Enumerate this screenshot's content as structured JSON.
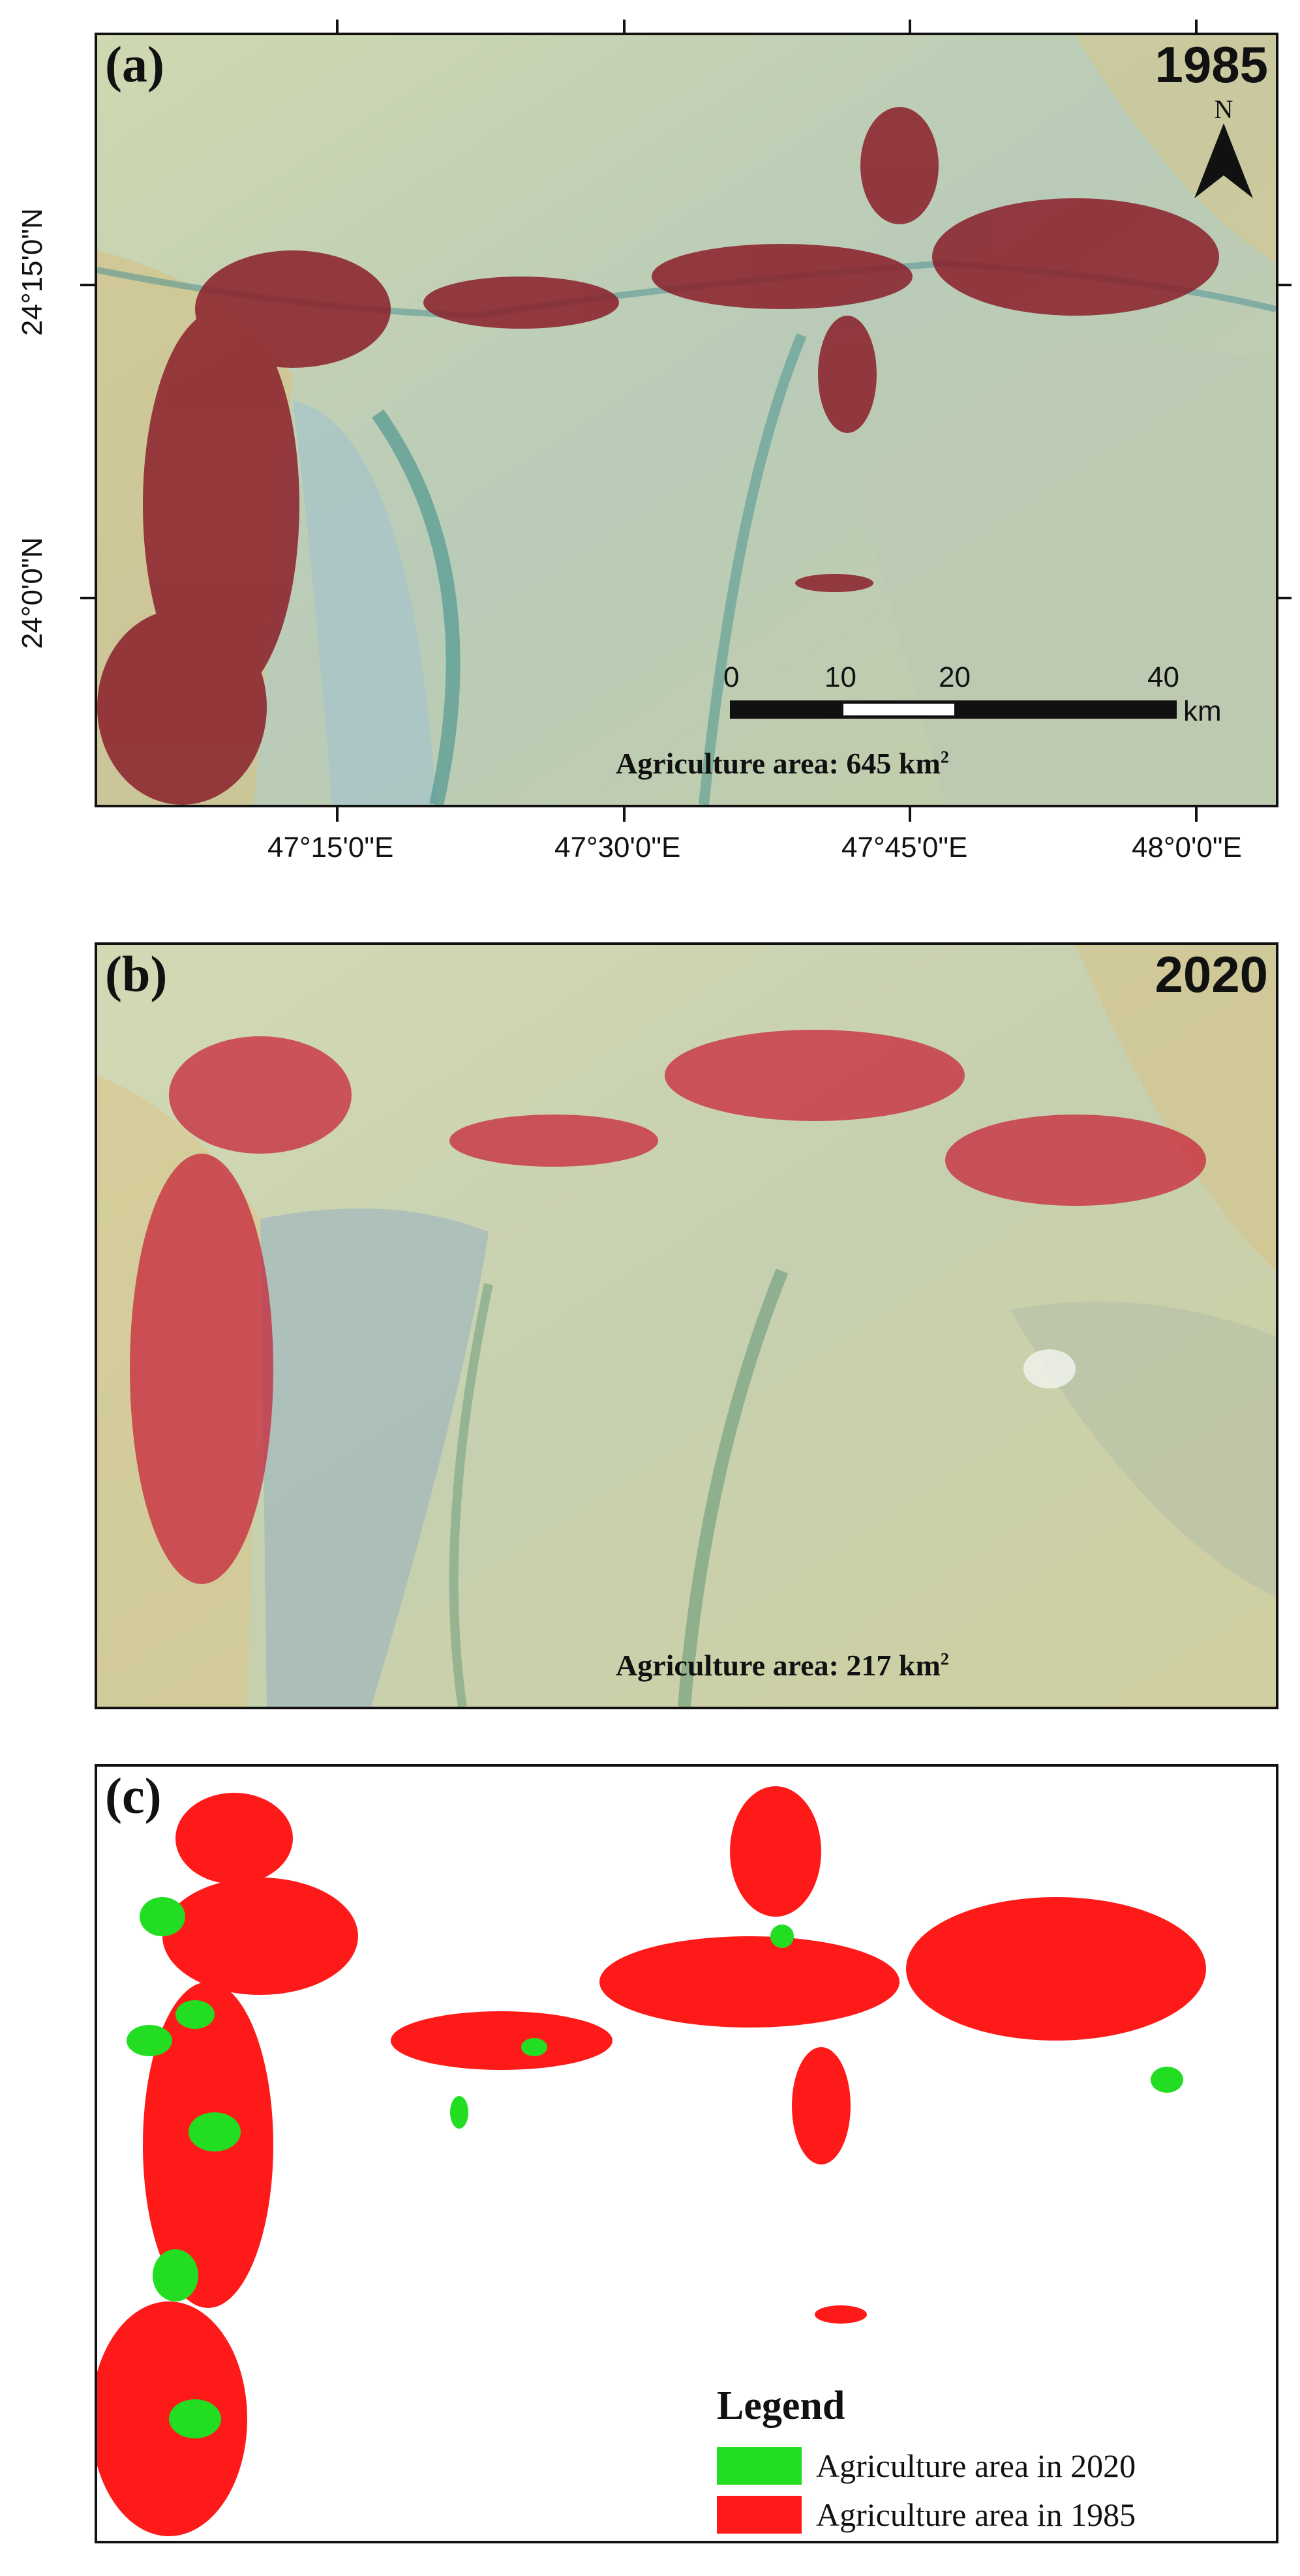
{
  "panels": {
    "a": {
      "label": "(a)",
      "year": "1985",
      "area_text": "Agriculture area: 645 km",
      "area_unit_sup": "2",
      "north": "N"
    },
    "b": {
      "label": "(b)",
      "year": "2020",
      "area_text": "Agriculture area: 217 km",
      "area_unit_sup": "2"
    },
    "c": {
      "label": "(c)"
    }
  },
  "axes": {
    "lon_labels": [
      "47°15'0\"E",
      "47°30'0\"E",
      "47°45'0\"E",
      "48°0'0\"E"
    ],
    "lat_labels": [
      "24°15'0\"N",
      "24°0'0\"N"
    ]
  },
  "scale_bar": {
    "ticks": [
      "0",
      "10",
      "20",
      "40"
    ],
    "unit": "km"
  },
  "legend": {
    "title": "Legend",
    "items": [
      {
        "label": "Agriculture area in 2020",
        "color": "#22dd22"
      },
      {
        "label": "Agriculture area in 1985",
        "color": "#ff1a1a"
      }
    ]
  },
  "colors": {
    "desert": "#c9cfa3",
    "sand": "#d8c989",
    "wadi": "#3f8f8a",
    "field_1985": "#8a1f2a",
    "field_2020": "#c8253a",
    "map_2020_red": "#ff1a1a",
    "map_2020_green": "#22dd22"
  }
}
